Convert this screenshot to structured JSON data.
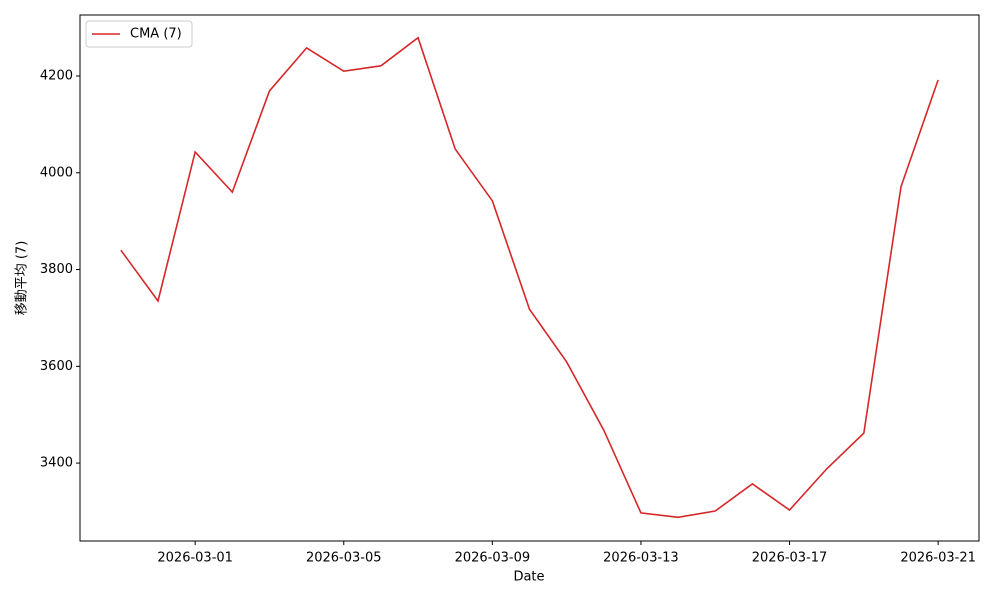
{
  "chart_data": {
    "type": "line",
    "x_label": "Date",
    "y_label": "移動平均 (7)",
    "x": [
      "2026-02-27",
      "2026-02-28",
      "2026-03-01",
      "2026-03-02",
      "2026-03-03",
      "2026-03-04",
      "2026-03-05",
      "2026-03-06",
      "2026-03-07",
      "2026-03-08",
      "2026-03-09",
      "2026-03-10",
      "2026-03-11",
      "2026-03-12",
      "2026-03-13",
      "2026-03-14",
      "2026-03-15",
      "2026-03-16",
      "2026-03-17",
      "2026-03-18",
      "2026-03-19",
      "2026-03-20",
      "2026-03-21"
    ],
    "series": [
      {
        "name": "CMA (7)",
        "color": "#d62728",
        "values": [
          3840,
          3735,
          4043,
          3960,
          4169,
          4258,
          4210,
          4221,
          4279,
          4049,
          3942,
          3718,
          3609,
          3468,
          3297,
          3288,
          3301,
          3357,
          3303,
          3388,
          3462,
          3971,
          4192
        ]
      }
    ],
    "xlim": [
      "2026-02-25T21:36",
      "2026-03-22T02:24"
    ],
    "xticks": [
      "2026-03-01",
      "2026-03-05",
      "2026-03-09",
      "2026-03-13",
      "2026-03-17",
      "2026-03-21"
    ],
    "ylim": [
      3239,
      4326
    ],
    "yticks": [
      3400,
      3600,
      3800,
      4000,
      4200
    ],
    "legend": "upper left"
  }
}
